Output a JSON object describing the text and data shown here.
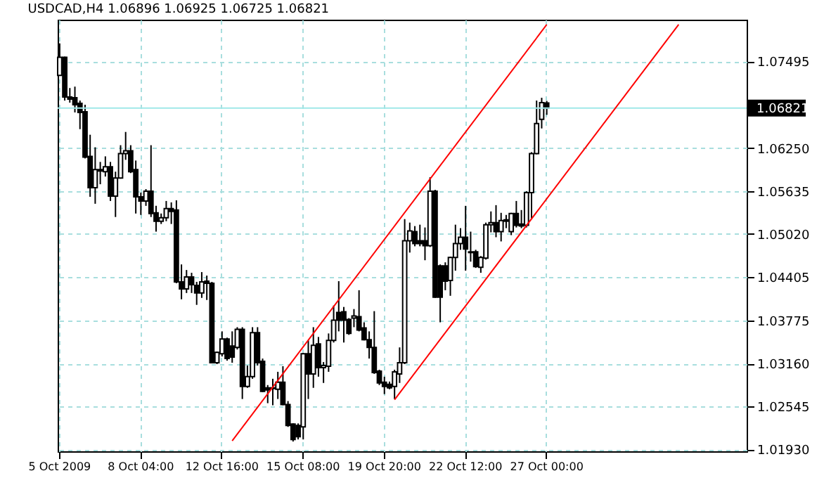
{
  "chart_data": {
    "type": "candlestick",
    "title": "USDCAD,H4  1.06896 1.06925 1.06725 1.06821",
    "categories": [
      "5 Oct 2009",
      null,
      null,
      null,
      null,
      null,
      null,
      null,
      null,
      null,
      null,
      null,
      null,
      null,
      null,
      null,
      "8 Oct 04:00",
      null,
      null,
      null,
      null,
      null,
      null,
      null,
      null,
      null,
      null,
      null,
      null,
      null,
      null,
      null,
      "12 Oct 16:00",
      null,
      null,
      null,
      null,
      null,
      null,
      null,
      null,
      null,
      null,
      null,
      null,
      null,
      null,
      null,
      "15 Oct 08:00",
      null,
      null,
      null,
      null,
      null,
      null,
      null,
      null,
      null,
      null,
      null,
      null,
      null,
      null,
      null,
      "19 Oct 20:00",
      null,
      null,
      null,
      null,
      null,
      null,
      null,
      null,
      null,
      null,
      null,
      null,
      null,
      null,
      null,
      "22 Oct 12:00",
      null,
      null,
      null,
      null,
      null,
      null,
      null,
      null,
      null,
      null,
      null,
      null,
      null,
      null,
      null,
      "27 Oct 00:00",
      null,
      null,
      null,
      null,
      null,
      null,
      null,
      null,
      null,
      null,
      null,
      null,
      null,
      null,
      null,
      null,
      null,
      null,
      null,
      null,
      null,
      null,
      null,
      null,
      null,
      null,
      null,
      null,
      null,
      null,
      null,
      null,
      null,
      null,
      null,
      null,
      null,
      null,
      null
    ],
    "ohlc": [
      [
        1.0729,
        1.0775,
        1.0729,
        1.0755
      ],
      [
        1.0755,
        1.0756,
        1.0693,
        1.0698
      ],
      [
        1.0698,
        1.0711,
        1.069,
        1.0695
      ],
      [
        1.0697,
        1.0713,
        1.0676,
        1.0687
      ],
      [
        1.0689,
        1.0693,
        1.0652,
        1.0676
      ],
      [
        1.0677,
        1.0687,
        1.061,
        1.0612
      ],
      [
        1.0613,
        1.0644,
        1.0555,
        1.0568
      ],
      [
        1.0568,
        1.0626,
        1.0545,
        1.0594
      ],
      [
        1.0594,
        1.0605,
        1.0573,
        1.0592
      ],
      [
        1.0591,
        1.0613,
        1.0584,
        1.0598
      ],
      [
        1.0598,
        1.0605,
        1.0549,
        1.0556
      ],
      [
        1.0556,
        1.0591,
        1.0526,
        1.0582
      ],
      [
        1.0582,
        1.0629,
        1.0581,
        1.0617
      ],
      [
        1.0617,
        1.0648,
        1.0608,
        1.0621
      ],
      [
        1.0621,
        1.0629,
        1.0589,
        1.0591
      ],
      [
        1.0594,
        1.0607,
        1.0531,
        1.0555
      ],
      [
        1.0555,
        1.0561,
        1.0529,
        1.0549
      ],
      [
        1.0549,
        1.0566,
        1.0542,
        1.0563
      ],
      [
        1.0563,
        1.0629,
        1.0526,
        1.0531
      ],
      [
        1.0532,
        1.0542,
        1.0505,
        1.052
      ],
      [
        1.052,
        1.0531,
        1.0516,
        1.0525
      ],
      [
        1.0525,
        1.0549,
        1.052,
        1.0538
      ],
      [
        1.0538,
        1.0547,
        1.0516,
        1.0534
      ],
      [
        1.0536,
        1.055,
        1.0431,
        1.0433
      ],
      [
        1.0433,
        1.0458,
        1.0408,
        1.0423
      ],
      [
        1.0423,
        1.045,
        1.0417,
        1.044
      ],
      [
        1.044,
        1.0446,
        1.0417,
        1.0429
      ],
      [
        1.0428,
        1.0433,
        1.04,
        1.0417
      ],
      [
        1.0417,
        1.0447,
        1.041,
        1.0433
      ],
      [
        1.0434,
        1.0442,
        1.0407,
        1.0431
      ],
      [
        1.0431,
        1.0433,
        1.0317,
        1.0317
      ],
      [
        1.0317,
        1.0333,
        1.0315,
        1.0332
      ],
      [
        1.033,
        1.0362,
        1.0326,
        1.0351
      ],
      [
        1.0351,
        1.0353,
        1.032,
        1.0323
      ],
      [
        1.0341,
        1.0362,
        1.0317,
        1.0325
      ],
      [
        1.0339,
        1.0368,
        1.0336,
        1.0365
      ],
      [
        1.0365,
        1.0368,
        1.0265,
        1.0283
      ],
      [
        1.0283,
        1.0313,
        1.0281,
        1.0297
      ],
      [
        1.0297,
        1.0368,
        1.0294,
        1.036
      ],
      [
        1.036,
        1.0368,
        1.0313,
        1.0317
      ],
      [
        1.0319,
        1.0323,
        1.0275,
        1.0276
      ],
      [
        1.0281,
        1.0285,
        1.0259,
        1.0278
      ],
      [
        1.0281,
        1.0294,
        1.0256,
        1.028
      ],
      [
        1.0279,
        1.0304,
        1.0265,
        1.0289
      ],
      [
        1.0289,
        1.0312,
        1.0256,
        1.0257
      ],
      [
        1.0257,
        1.0262,
        1.0225,
        1.0227
      ],
      [
        1.0229,
        1.023,
        1.0204,
        1.0207
      ],
      [
        1.0227,
        1.023,
        1.0207,
        1.0211
      ],
      [
        1.0225,
        1.0331,
        1.0207,
        1.033
      ],
      [
        1.033,
        1.0349,
        1.0265,
        1.0301
      ],
      [
        1.0301,
        1.0368,
        1.0281,
        1.0342
      ],
      [
        1.0344,
        1.0354,
        1.0297,
        1.031
      ],
      [
        1.031,
        1.0318,
        1.0288,
        1.0313
      ],
      [
        1.0312,
        1.0359,
        1.0304,
        1.0349
      ],
      [
        1.0349,
        1.0399,
        1.0346,
        1.0378
      ],
      [
        1.0389,
        1.0434,
        1.0362,
        1.0378
      ],
      [
        1.039,
        1.0397,
        1.0346,
        1.0378
      ],
      [
        1.0379,
        1.0381,
        1.0357,
        1.0359
      ],
      [
        1.0381,
        1.0394,
        1.0368,
        1.0384
      ],
      [
        1.0383,
        1.0421,
        1.0362,
        1.0364
      ],
      [
        1.0367,
        1.0375,
        1.0349,
        1.035
      ],
      [
        1.035,
        1.0362,
        1.0323,
        1.0339
      ],
      [
        1.0339,
        1.0391,
        1.0301,
        1.0303
      ],
      [
        1.0305,
        1.0307,
        1.0285,
        1.0288
      ],
      [
        1.0289,
        1.0297,
        1.0272,
        1.0283
      ],
      [
        1.0286,
        1.029,
        1.0279,
        1.0281
      ],
      [
        1.0283,
        1.0307,
        1.0265,
        1.0304
      ],
      [
        1.0301,
        1.0339,
        1.0288,
        1.0317
      ],
      [
        1.0317,
        1.0523,
        1.0315,
        1.0492
      ],
      [
        1.0492,
        1.0518,
        1.0475,
        1.0506
      ],
      [
        1.0505,
        1.0513,
        1.0484,
        1.0488
      ],
      [
        1.0492,
        1.0515,
        1.0484,
        1.0488
      ],
      [
        1.0492,
        1.0511,
        1.0464,
        1.0485
      ],
      [
        1.0485,
        1.0583,
        1.0483,
        1.0563
      ],
      [
        1.0563,
        1.0565,
        1.041,
        1.0411
      ],
      [
        1.0456,
        1.0458,
        1.0375,
        1.0411
      ],
      [
        1.0456,
        1.0461,
        1.0421,
        1.0434
      ],
      [
        1.0435,
        1.0469,
        1.0413,
        1.0468
      ],
      [
        1.0468,
        1.0515,
        1.0449,
        1.0488
      ],
      [
        1.0488,
        1.051,
        1.0479,
        1.0497
      ],
      [
        1.0497,
        1.0542,
        1.0449,
        1.048
      ],
      [
        1.0476,
        1.0505,
        1.0462,
        1.0475
      ],
      [
        1.0476,
        1.0479,
        1.0453,
        1.0455
      ],
      [
        1.0454,
        1.047,
        1.0446,
        1.0468
      ],
      [
        1.0467,
        1.0518,
        1.0465,
        1.0515
      ],
      [
        1.0515,
        1.0534,
        1.0504,
        1.0518
      ],
      [
        1.0518,
        1.0543,
        1.0497,
        1.0505
      ],
      [
        1.0505,
        1.0532,
        1.0491,
        1.0521
      ],
      [
        1.0522,
        1.0529,
        1.051,
        1.052
      ],
      [
        1.0505,
        1.0532,
        1.05,
        1.0531
      ],
      [
        1.0531,
        1.0549,
        1.0511,
        1.0514
      ],
      [
        1.0516,
        1.0536,
        1.051,
        1.0513
      ],
      [
        1.0514,
        1.0563,
        1.0511,
        1.0561
      ],
      [
        1.0561,
        1.0619,
        1.0524,
        1.0617
      ],
      [
        1.0617,
        1.0693,
        1.0616,
        1.066
      ],
      [
        1.0666,
        1.0697,
        1.0653,
        1.069
      ],
      [
        1.06896,
        1.06925,
        1.06725,
        1.06821
      ],
      null,
      null,
      null,
      null,
      null,
      null,
      null,
      null,
      null,
      null,
      null,
      null,
      null,
      null,
      null,
      null,
      null,
      null,
      null,
      null,
      null,
      null,
      null,
      null,
      null,
      null,
      null,
      null,
      null,
      null,
      null,
      null,
      null,
      null,
      null,
      null,
      null,
      null,
      null
    ],
    "series": [
      {
        "type": "line",
        "color": "#ff0000",
        "values": [
          null,
          null,
          null,
          null,
          null,
          null,
          null,
          null,
          null,
          null,
          null,
          null,
          null,
          null,
          null,
          null,
          null,
          null,
          null,
          null,
          null,
          null,
          null,
          null,
          null,
          null,
          null,
          null,
          null,
          null,
          null,
          null,
          null,
          null,
          1.0205,
          null,
          null,
          null,
          null,
          null,
          null,
          null,
          null,
          null,
          null,
          null,
          null,
          null,
          null,
          null,
          null,
          null,
          null,
          null,
          null,
          null,
          null,
          null,
          null,
          null,
          null,
          null,
          null,
          null,
          null,
          null,
          null,
          null,
          null,
          null,
          null,
          null,
          null,
          null,
          null,
          null,
          null,
          null,
          null,
          null,
          null,
          null,
          null,
          null,
          null,
          null,
          null,
          null,
          null,
          null,
          null,
          null,
          null,
          null,
          null,
          null,
          1.0802,
          null,
          null,
          null,
          null,
          null,
          null,
          null,
          null,
          null,
          null,
          null,
          null,
          null,
          null,
          null,
          null,
          null,
          null,
          null,
          null,
          null,
          null,
          null,
          null,
          null,
          null,
          null,
          null,
          null,
          null,
          null,
          null,
          null,
          null,
          null,
          null,
          null,
          null,
          null
        ]
      },
      {
        "type": "line",
        "color": "#ff0000",
        "values": [
          null,
          null,
          null,
          null,
          null,
          null,
          null,
          null,
          null,
          null,
          null,
          null,
          null,
          null,
          null,
          null,
          null,
          null,
          null,
          null,
          null,
          null,
          null,
          null,
          null,
          null,
          null,
          null,
          null,
          null,
          null,
          null,
          null,
          null,
          null,
          null,
          null,
          null,
          null,
          null,
          null,
          null,
          null,
          null,
          null,
          null,
          null,
          null,
          null,
          null,
          null,
          null,
          null,
          null,
          null,
          null,
          null,
          null,
          null,
          null,
          null,
          null,
          null,
          null,
          null,
          null,
          1.0264,
          null,
          null,
          null,
          null,
          null,
          null,
          null,
          null,
          null,
          null,
          null,
          null,
          null,
          null,
          null,
          null,
          null,
          null,
          null,
          null,
          null,
          null,
          null,
          null,
          null,
          null,
          null,
          null,
          null,
          null,
          null,
          null,
          null,
          null,
          null,
          null,
          null,
          null,
          null,
          null,
          null,
          null,
          null,
          null,
          null,
          null,
          null,
          null,
          null,
          null,
          null,
          null,
          null,
          null,
          null,
          1.0802,
          null,
          null,
          null,
          null,
          null,
          null,
          null,
          null,
          null,
          null,
          null,
          null,
          null
        ]
      }
    ],
    "ref_lines": [
      {
        "axis": "y",
        "value": 1.06821,
        "label": "1.06821",
        "color": "#a0e8e8"
      }
    ],
    "ylim": [
      1.019,
      1.0809
    ],
    "yticks": [
      1.07495,
      {
        "value": 1.0625,
        "label": "1.06250"
      },
      1.05635,
      {
        "value": 1.0502,
        "label": "1.05020"
      },
      1.04405,
      1.03775,
      {
        "value": 1.0316,
        "label": "1.03160"
      },
      1.02545,
      {
        "value": 1.0193,
        "label": "1.01930"
      }
    ],
    "grid": true
  }
}
